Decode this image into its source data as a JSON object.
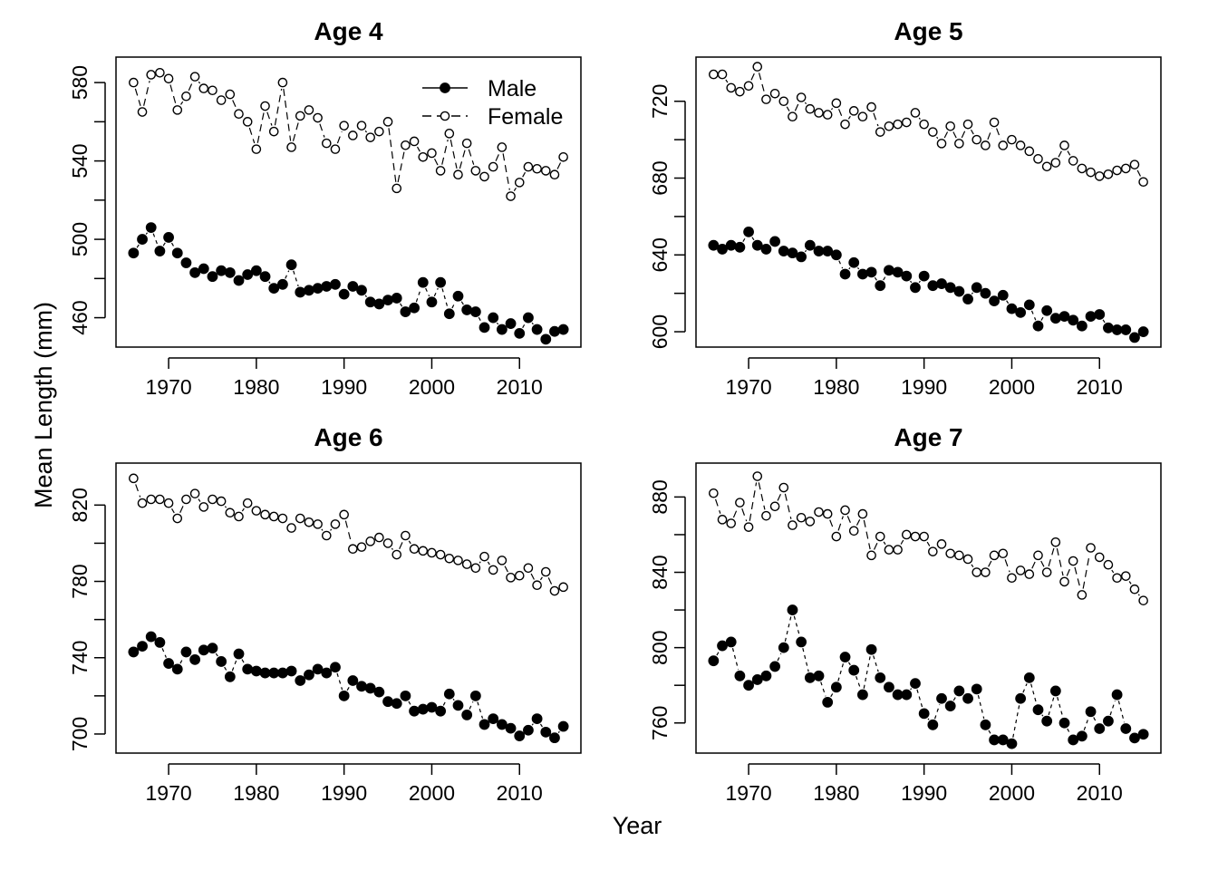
{
  "figure": {
    "xlabel": "Year",
    "ylabel": "Mean Length (mm)",
    "legend": {
      "position": "top-right",
      "entries": [
        "Male",
        "Female"
      ]
    }
  },
  "chart_data": [
    {
      "type": "scatter",
      "title": "Age 4",
      "xlim": [
        1964,
        2017
      ],
      "ylim": [
        445,
        593
      ],
      "xticks": [
        1970,
        1980,
        1990,
        2000,
        2010
      ],
      "yticks": [
        460,
        500,
        540,
        580
      ],
      "x": [
        1966,
        1967,
        1968,
        1969,
        1970,
        1971,
        1972,
        1973,
        1974,
        1975,
        1976,
        1977,
        1978,
        1979,
        1980,
        1981,
        1982,
        1983,
        1984,
        1985,
        1986,
        1987,
        1988,
        1989,
        1990,
        1991,
        1992,
        1993,
        1994,
        1995,
        1996,
        1997,
        1998,
        1999,
        2000,
        2001,
        2002,
        2003,
        2004,
        2005,
        2006,
        2007,
        2008,
        2009,
        2010,
        2011,
        2012,
        2013,
        2014,
        2015
      ],
      "series": [
        {
          "name": "Male",
          "marker": "filled",
          "values": [
            493,
            500,
            506,
            494,
            501,
            493,
            488,
            483,
            485,
            481,
            484,
            483,
            479,
            482,
            484,
            481,
            475,
            477,
            487,
            473,
            474,
            475,
            476,
            477,
            472,
            476,
            474,
            468,
            467,
            469,
            470,
            463,
            465,
            478,
            468,
            478,
            462,
            471,
            464,
            463,
            455,
            460,
            454,
            457,
            452,
            460,
            454,
            449,
            453,
            454
          ]
        },
        {
          "name": "Female",
          "marker": "open",
          "values": [
            580,
            565,
            584,
            585,
            582,
            566,
            573,
            583,
            577,
            576,
            571,
            574,
            564,
            560,
            546,
            568,
            555,
            580,
            547,
            563,
            566,
            562,
            549,
            546,
            558,
            553,
            558,
            552,
            555,
            560,
            526,
            548,
            550,
            542,
            544,
            535,
            554,
            533,
            549,
            535,
            532,
            537,
            547,
            522,
            529,
            537,
            536,
            535,
            533,
            542
          ]
        }
      ]
    },
    {
      "type": "scatter",
      "title": "Age 5",
      "xlim": [
        1964,
        2017
      ],
      "ylim": [
        592,
        743
      ],
      "xticks": [
        1970,
        1980,
        1990,
        2000,
        2010
      ],
      "yticks": [
        600,
        640,
        680,
        720
      ],
      "x": [
        1966,
        1967,
        1968,
        1969,
        1970,
        1971,
        1972,
        1973,
        1974,
        1975,
        1976,
        1977,
        1978,
        1979,
        1980,
        1981,
        1982,
        1983,
        1984,
        1985,
        1986,
        1987,
        1988,
        1989,
        1990,
        1991,
        1992,
        1993,
        1994,
        1995,
        1996,
        1997,
        1998,
        1999,
        2000,
        2001,
        2002,
        2003,
        2004,
        2005,
        2006,
        2007,
        2008,
        2009,
        2010,
        2011,
        2012,
        2013,
        2014,
        2015
      ],
      "series": [
        {
          "name": "Male",
          "marker": "filled",
          "values": [
            645,
            643,
            645,
            644,
            652,
            645,
            643,
            647,
            642,
            641,
            639,
            645,
            642,
            642,
            640,
            630,
            636,
            630,
            631,
            624,
            632,
            631,
            629,
            623,
            629,
            624,
            625,
            623,
            621,
            617,
            623,
            620,
            616,
            619,
            612,
            610,
            614,
            603,
            611,
            607,
            608,
            606,
            603,
            608,
            609,
            602,
            601,
            601,
            597,
            600
          ]
        },
        {
          "name": "Female",
          "marker": "open",
          "values": [
            734,
            734,
            727,
            725,
            728,
            738,
            721,
            724,
            720,
            712,
            722,
            716,
            714,
            713,
            719,
            708,
            715,
            712,
            717,
            704,
            707,
            708,
            709,
            714,
            708,
            704,
            698,
            707,
            698,
            708,
            700,
            697,
            709,
            697,
            700,
            697,
            694,
            690,
            686,
            688,
            697,
            689,
            685,
            683,
            681,
            682,
            684,
            685,
            687,
            678
          ]
        }
      ]
    },
    {
      "type": "scatter",
      "title": "Age 6",
      "xlim": [
        1964,
        2017
      ],
      "ylim": [
        690,
        842
      ],
      "xticks": [
        1970,
        1980,
        1990,
        2000,
        2010
      ],
      "yticks": [
        700,
        740,
        780,
        820
      ],
      "x": [
        1966,
        1967,
        1968,
        1969,
        1970,
        1971,
        1972,
        1973,
        1974,
        1975,
        1976,
        1977,
        1978,
        1979,
        1980,
        1981,
        1982,
        1983,
        1984,
        1985,
        1986,
        1987,
        1988,
        1989,
        1990,
        1991,
        1992,
        1993,
        1994,
        1995,
        1996,
        1997,
        1998,
        1999,
        2000,
        2001,
        2002,
        2003,
        2004,
        2005,
        2006,
        2007,
        2008,
        2009,
        2010,
        2011,
        2012,
        2013,
        2014,
        2015
      ],
      "series": [
        {
          "name": "Male",
          "marker": "filled",
          "values": [
            743,
            746,
            751,
            748,
            737,
            734,
            743,
            739,
            744,
            745,
            738,
            730,
            742,
            734,
            733,
            732,
            732,
            732,
            733,
            728,
            731,
            734,
            732,
            735,
            720,
            728,
            725,
            724,
            722,
            717,
            716,
            720,
            712,
            713,
            714,
            712,
            721,
            715,
            710,
            720,
            705,
            708,
            705,
            703,
            699,
            702,
            708,
            701,
            698,
            704
          ]
        },
        {
          "name": "Female",
          "marker": "open",
          "values": [
            834,
            821,
            823,
            823,
            821,
            813,
            823,
            826,
            819,
            823,
            822,
            816,
            814,
            821,
            817,
            815,
            814,
            813,
            808,
            813,
            811,
            810,
            804,
            810,
            815,
            797,
            798,
            801,
            803,
            800,
            794,
            804,
            797,
            796,
            795,
            794,
            792,
            791,
            789,
            787,
            793,
            786,
            791,
            782,
            783,
            787,
            778,
            785,
            775,
            777
          ]
        }
      ]
    },
    {
      "type": "scatter",
      "title": "Age 7",
      "xlim": [
        1964,
        2017
      ],
      "ylim": [
        744,
        898
      ],
      "xticks": [
        1970,
        1980,
        1990,
        2000,
        2010
      ],
      "yticks": [
        760,
        800,
        840,
        880
      ],
      "x": [
        1966,
        1967,
        1968,
        1969,
        1970,
        1971,
        1972,
        1973,
        1974,
        1975,
        1976,
        1977,
        1978,
        1979,
        1980,
        1981,
        1982,
        1983,
        1984,
        1985,
        1986,
        1987,
        1988,
        1989,
        1990,
        1991,
        1992,
        1993,
        1994,
        1995,
        1996,
        1997,
        1998,
        1999,
        2000,
        2001,
        2002,
        2003,
        2004,
        2005,
        2006,
        2007,
        2008,
        2009,
        2010,
        2011,
        2012,
        2013,
        2014,
        2015
      ],
      "series": [
        {
          "name": "Male",
          "marker": "filled",
          "values": [
            793,
            801,
            803,
            785,
            780,
            783,
            785,
            790,
            800,
            820,
            803,
            784,
            785,
            771,
            779,
            795,
            788,
            775,
            799,
            784,
            779,
            775,
            775,
            781,
            765,
            759,
            773,
            769,
            777,
            773,
            778,
            759,
            751,
            751,
            749,
            773,
            784,
            767,
            761,
            777,
            760,
            751,
            753,
            766,
            757,
            761,
            775,
            757,
            752,
            754
          ]
        },
        {
          "name": "Female",
          "marker": "open",
          "values": [
            882,
            868,
            866,
            877,
            864,
            891,
            870,
            875,
            885,
            865,
            869,
            867,
            872,
            871,
            859,
            873,
            862,
            871,
            849,
            859,
            852,
            852,
            860,
            859,
            859,
            851,
            855,
            850,
            849,
            847,
            840,
            840,
            849,
            850,
            837,
            841,
            839,
            849,
            840,
            856,
            835,
            846,
            828,
            853,
            848,
            844,
            837,
            838,
            831,
            825
          ]
        }
      ]
    }
  ]
}
